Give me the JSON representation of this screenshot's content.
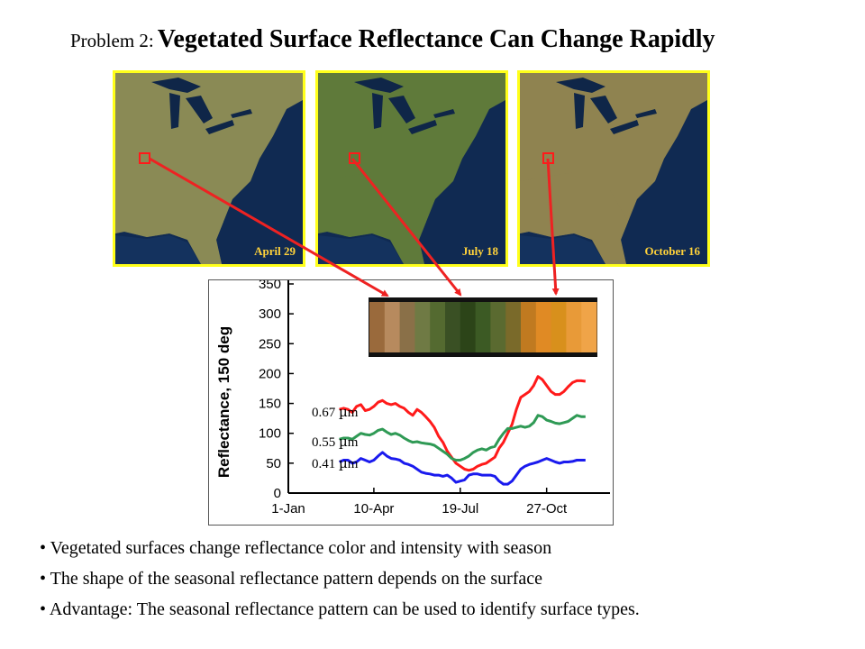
{
  "title": {
    "prefix": "Problem 2:",
    "main": "Vegetated Surface Reflectance Can Change Rapidly"
  },
  "panels": [
    {
      "label": "April 29",
      "tint": "#8a8a55"
    },
    {
      "label": "July 18",
      "tint": "#5f7a3a"
    },
    {
      "label": "October 16",
      "tint": "#8f8350"
    }
  ],
  "colors": {
    "panel_border": "#ffff1a",
    "panel_label": "#ffd23a",
    "marker": "#ff1a1a",
    "arrow": "#ee2222"
  },
  "color_strip": [
    "#9a6a3c",
    "#b78a5e",
    "#8a7048",
    "#6f7a44",
    "#546a30",
    "#3a5024",
    "#2c4418",
    "#3c5a24",
    "#5a6a30",
    "#7a6a2a",
    "#c07a20",
    "#e08a24",
    "#d8901c",
    "#e89a38",
    "#f0a448"
  ],
  "chart_data": {
    "type": "line",
    "ylabel": "Reflectance, 150 deg",
    "xlabel": "",
    "ylim": [
      0,
      350
    ],
    "yticks": [
      0,
      50,
      100,
      150,
      200,
      250,
      300,
      350
    ],
    "ytick_labels": [
      "0",
      "50",
      "100",
      "150",
      "200",
      "250",
      "300",
      "350"
    ],
    "xlim": [
      1,
      365
    ],
    "xticks": [
      1,
      100,
      200,
      300
    ],
    "xtick_labels": [
      "1-Jan",
      "10-Apr",
      "19-Jul",
      "27-Oct"
    ],
    "grid": false,
    "series": [
      {
        "name": "0.67 µm",
        "label_parts": [
          "0.67 ",
          "µ",
          "m"
        ],
        "color": "#ff1a1a",
        "x": [
          60,
          65,
          70,
          75,
          80,
          85,
          90,
          95,
          100,
          105,
          110,
          115,
          120,
          125,
          130,
          135,
          140,
          145,
          150,
          155,
          160,
          165,
          170,
          175,
          180,
          185,
          190,
          195,
          200,
          205,
          210,
          215,
          220,
          225,
          230,
          235,
          240,
          245,
          250,
          255,
          260,
          265,
          270,
          275,
          280,
          285,
          290,
          295,
          300,
          305,
          310,
          315,
          320,
          325,
          330,
          335,
          340,
          345
        ],
        "values": [
          140,
          142,
          140,
          135,
          145,
          148,
          138,
          140,
          145,
          152,
          155,
          150,
          148,
          150,
          145,
          142,
          135,
          130,
          140,
          135,
          128,
          120,
          110,
          95,
          85,
          70,
          60,
          50,
          45,
          40,
          38,
          40,
          45,
          48,
          50,
          55,
          60,
          75,
          85,
          100,
          115,
          140,
          160,
          165,
          170,
          180,
          195,
          190,
          180,
          170,
          165,
          165,
          170,
          178,
          185,
          188,
          188,
          187
        ]
      },
      {
        "name": "0.55 µm",
        "label_parts": [
          "0.55 ",
          "µ",
          "m"
        ],
        "color": "#2f9a55",
        "x": [
          60,
          65,
          70,
          75,
          80,
          85,
          90,
          95,
          100,
          105,
          110,
          115,
          120,
          125,
          130,
          135,
          140,
          145,
          150,
          155,
          160,
          165,
          170,
          175,
          180,
          185,
          190,
          195,
          200,
          205,
          210,
          215,
          220,
          225,
          230,
          235,
          240,
          245,
          250,
          255,
          260,
          265,
          270,
          275,
          280,
          285,
          290,
          295,
          300,
          305,
          310,
          315,
          320,
          325,
          330,
          335,
          340,
          345
        ],
        "values": [
          90,
          92,
          92,
          90,
          95,
          100,
          98,
          97,
          100,
          105,
          107,
          102,
          98,
          100,
          97,
          92,
          88,
          85,
          86,
          84,
          83,
          82,
          80,
          75,
          70,
          65,
          58,
          55,
          55,
          58,
          62,
          68,
          72,
          74,
          72,
          76,
          78,
          90,
          100,
          108,
          108,
          110,
          112,
          110,
          112,
          118,
          130,
          128,
          122,
          120,
          117,
          116,
          118,
          120,
          125,
          130,
          128,
          128
        ]
      },
      {
        "name": "0.41 µm",
        "label_parts": [
          "0.41 ",
          "µ",
          "m"
        ],
        "color": "#1a1aee",
        "x": [
          60,
          65,
          70,
          75,
          80,
          85,
          90,
          95,
          100,
          105,
          110,
          115,
          120,
          125,
          130,
          135,
          140,
          145,
          150,
          155,
          160,
          165,
          170,
          175,
          180,
          185,
          190,
          195,
          200,
          205,
          210,
          215,
          220,
          225,
          230,
          235,
          240,
          245,
          250,
          255,
          260,
          265,
          270,
          275,
          280,
          285,
          290,
          295,
          300,
          305,
          310,
          315,
          320,
          325,
          330,
          335,
          340,
          345
        ],
        "values": [
          52,
          55,
          55,
          50,
          52,
          58,
          55,
          52,
          55,
          62,
          68,
          62,
          58,
          57,
          55,
          50,
          48,
          45,
          40,
          35,
          33,
          32,
          30,
          30,
          28,
          30,
          25,
          18,
          20,
          22,
          30,
          32,
          32,
          30,
          30,
          30,
          28,
          20,
          15,
          15,
          20,
          30,
          40,
          45,
          48,
          50,
          52,
          55,
          58,
          55,
          52,
          50,
          52,
          52,
          53,
          55,
          55,
          55
        ]
      }
    ]
  },
  "bullets": [
    "•  Vegetated surfaces change reflectance color and intensity with season",
    "• The shape of the seasonal reflectance pattern depends on the surface",
    "• Advantage: The seasonal reflectance pattern can be used to identify surface types."
  ]
}
